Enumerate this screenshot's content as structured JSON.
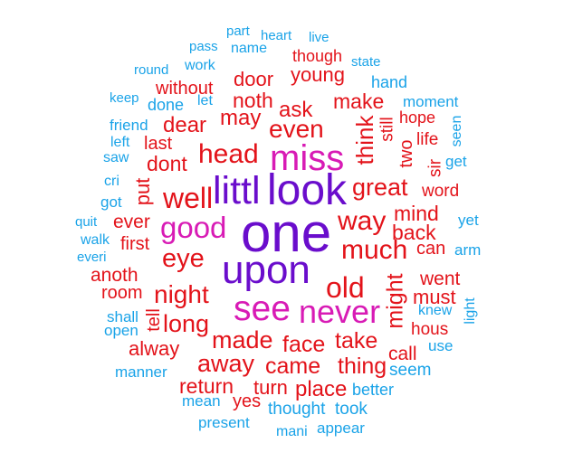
{
  "colors": {
    "tier1": "#6a0dcc",
    "tier2": "#d81bb5",
    "tier3": "#e3131a",
    "tier4": "#1aa3e8"
  },
  "words": [
    {
      "text": "part",
      "tier": 4
    },
    {
      "text": "heart",
      "tier": 4
    },
    {
      "text": "live",
      "tier": 4
    },
    {
      "text": "pass",
      "tier": 4
    },
    {
      "text": "name",
      "tier": 4
    },
    {
      "text": "though",
      "tier": 3
    },
    {
      "text": "state",
      "tier": 4
    },
    {
      "text": "round",
      "tier": 4
    },
    {
      "text": "work",
      "tier": 4
    },
    {
      "text": "young",
      "tier": 3
    },
    {
      "text": "door",
      "tier": 3
    },
    {
      "text": "hand",
      "tier": 4
    },
    {
      "text": "without",
      "tier": 3
    },
    {
      "text": "keep",
      "tier": 4
    },
    {
      "text": "let",
      "tier": 4
    },
    {
      "text": "noth",
      "tier": 3
    },
    {
      "text": "done",
      "tier": 4
    },
    {
      "text": "make",
      "tier": 3
    },
    {
      "text": "moment",
      "tier": 4
    },
    {
      "text": "ask",
      "tier": 3
    },
    {
      "text": "friend",
      "tier": 4
    },
    {
      "text": "may",
      "tier": 3
    },
    {
      "text": "hope",
      "tier": 3
    },
    {
      "text": "dear",
      "tier": 3
    },
    {
      "text": "even",
      "tier": 3
    },
    {
      "text": "think",
      "tier": 3
    },
    {
      "text": "still",
      "tier": 3
    },
    {
      "text": "seen",
      "tier": 4
    },
    {
      "text": "left",
      "tier": 4
    },
    {
      "text": "last",
      "tier": 3
    },
    {
      "text": "life",
      "tier": 3
    },
    {
      "text": "miss",
      "tier": 2
    },
    {
      "text": "saw",
      "tier": 4
    },
    {
      "text": "head",
      "tier": 3
    },
    {
      "text": "two",
      "tier": 3
    },
    {
      "text": "dont",
      "tier": 3
    },
    {
      "text": "get",
      "tier": 4
    },
    {
      "text": "sir",
      "tier": 3
    },
    {
      "text": "cri",
      "tier": 4
    },
    {
      "text": "great",
      "tier": 3
    },
    {
      "text": "put",
      "tier": 3
    },
    {
      "text": "well",
      "tier": 3
    },
    {
      "text": "littl",
      "tier": 1
    },
    {
      "text": "look",
      "tier": 1
    },
    {
      "text": "word",
      "tier": 3
    },
    {
      "text": "got",
      "tier": 4
    },
    {
      "text": "mind",
      "tier": 3
    },
    {
      "text": "quit",
      "tier": 4
    },
    {
      "text": "ever",
      "tier": 3
    },
    {
      "text": "yet",
      "tier": 4
    },
    {
      "text": "good",
      "tier": 2
    },
    {
      "text": "way",
      "tier": 3
    },
    {
      "text": "one",
      "tier": 1
    },
    {
      "text": "back",
      "tier": 3
    },
    {
      "text": "walk",
      "tier": 4
    },
    {
      "text": "first",
      "tier": 3
    },
    {
      "text": "can",
      "tier": 3
    },
    {
      "text": "much",
      "tier": 3
    },
    {
      "text": "arm",
      "tier": 4
    },
    {
      "text": "everi",
      "tier": 4
    },
    {
      "text": "eye",
      "tier": 3
    },
    {
      "text": "anoth",
      "tier": 3
    },
    {
      "text": "upon",
      "tier": 1
    },
    {
      "text": "old",
      "tier": 3
    },
    {
      "text": "went",
      "tier": 3
    },
    {
      "text": "might",
      "tier": 3
    },
    {
      "text": "room",
      "tier": 3
    },
    {
      "text": "night",
      "tier": 3
    },
    {
      "text": "must",
      "tier": 3
    },
    {
      "text": "see",
      "tier": 2
    },
    {
      "text": "never",
      "tier": 2
    },
    {
      "text": "tell",
      "tier": 3
    },
    {
      "text": "knew",
      "tier": 4
    },
    {
      "text": "shall",
      "tier": 4
    },
    {
      "text": "long",
      "tier": 3
    },
    {
      "text": "light",
      "tier": 4
    },
    {
      "text": "open",
      "tier": 4
    },
    {
      "text": "made",
      "tier": 3
    },
    {
      "text": "face",
      "tier": 3
    },
    {
      "text": "take",
      "tier": 3
    },
    {
      "text": "hous",
      "tier": 3
    },
    {
      "text": "alway",
      "tier": 3
    },
    {
      "text": "use",
      "tier": 4
    },
    {
      "text": "call",
      "tier": 3
    },
    {
      "text": "away",
      "tier": 3
    },
    {
      "text": "came",
      "tier": 3
    },
    {
      "text": "thing",
      "tier": 3
    },
    {
      "text": "manner",
      "tier": 4
    },
    {
      "text": "seem",
      "tier": 4
    },
    {
      "text": "return",
      "tier": 3
    },
    {
      "text": "turn",
      "tier": 3
    },
    {
      "text": "place",
      "tier": 3
    },
    {
      "text": "better",
      "tier": 4
    },
    {
      "text": "mean",
      "tier": 4
    },
    {
      "text": "yes",
      "tier": 3
    },
    {
      "text": "thought",
      "tier": 4
    },
    {
      "text": "took",
      "tier": 4
    },
    {
      "text": "present",
      "tier": 4
    },
    {
      "text": "mani",
      "tier": 4
    },
    {
      "text": "appear",
      "tier": 4
    }
  ]
}
